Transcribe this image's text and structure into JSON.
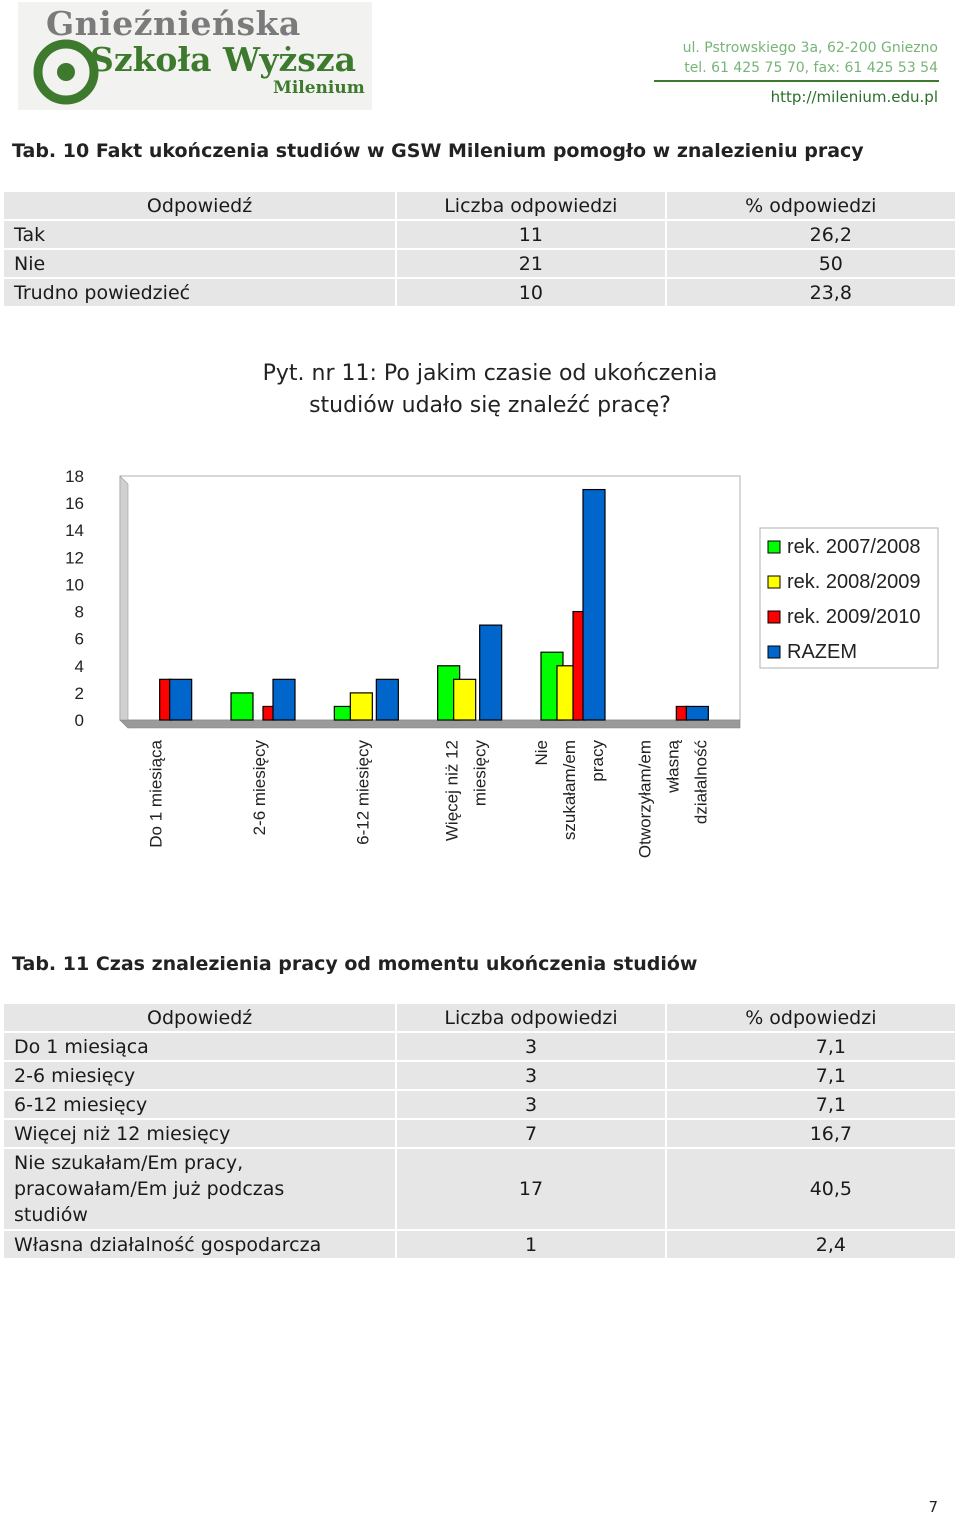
{
  "header": {
    "logo_line1": "Gnieźnieńska",
    "logo_line2": "Szkoła Wyższa",
    "logo_line3": "Milenium",
    "address": "ul. Pstrowskiego 3a, 62-200 Gniezno",
    "phone": "tel. 61 425 75 70, fax: 61 425 53 54",
    "url": "http://milenium.edu.pl"
  },
  "table10": {
    "caption": "Tab. 10 Fakt ukończenia studiów w GSW Milenium pomogło w znalezieniu pracy",
    "headers": [
      "Odpowiedź",
      "Liczba odpowiedzi",
      "% odpowiedzi"
    ],
    "rows": [
      {
        "answer": "Tak",
        "count": "11",
        "percent": "26,2"
      },
      {
        "answer": "Nie",
        "count": "21",
        "percent": "50"
      },
      {
        "answer": "Trudno powiedzieć",
        "count": "10",
        "percent": "23,8"
      }
    ]
  },
  "chart_title_line1": "Pyt. nr 11: Po jakim czasie od ukończenia",
  "chart_title_line2": "studiów udało się znaleźć pracę?",
  "chart_data": {
    "type": "bar",
    "title": "Pyt. nr 11: Po jakim czasie od ukończenia studiów udało się znaleźć pracę?",
    "categories": [
      [
        "Do 1 miesiąca"
      ],
      [
        "2-6 miesięcy"
      ],
      [
        "6-12 miesięcy"
      ],
      [
        "Więcej niż 12",
        "miesięcy"
      ],
      [
        "Nie",
        "szukałam/em",
        "pracy"
      ],
      [
        "Otworzyłam/em",
        "własną",
        "działalność"
      ]
    ],
    "series": [
      {
        "name": "rek. 2007/2008",
        "color": "#00ff00",
        "values": [
          0,
          2,
          1,
          4,
          5,
          0
        ]
      },
      {
        "name": "rek. 2008/2009",
        "color": "#ffff00",
        "values": [
          0,
          0,
          2,
          3,
          4,
          0
        ]
      },
      {
        "name": "rek. 2009/2010",
        "color": "#ff0000",
        "values": [
          3,
          1,
          0,
          0,
          8,
          1
        ]
      },
      {
        "name": "RAZEM",
        "color": "#0066cc",
        "values": [
          3,
          3,
          3,
          7,
          17,
          1
        ]
      }
    ],
    "yticks": [
      "0",
      "2",
      "4",
      "6",
      "8",
      "10",
      "12",
      "14",
      "16",
      "18"
    ],
    "ylim": [
      0,
      18
    ],
    "grid": false,
    "legend": "right"
  },
  "table11": {
    "caption": "Tab. 11 Czas znalezienia pracy od momentu ukończenia studiów",
    "headers": [
      "Odpowiedź",
      "Liczba odpowiedzi",
      "% odpowiedzi"
    ],
    "rows": [
      {
        "answer": "Do 1 miesiąca",
        "count": "3",
        "percent": "7,1"
      },
      {
        "answer": "2-6 miesięcy",
        "count": "3",
        "percent": "7,1"
      },
      {
        "answer": "6-12 miesięcy",
        "count": "3",
        "percent": "7,1"
      },
      {
        "answer": "Więcej niż 12 miesięcy",
        "count": "7",
        "percent": "16,7"
      },
      {
        "answer": "Nie szukałam/Em pracy, pracowałam/Em już podczas studiów",
        "count": "17",
        "percent": "40,5"
      },
      {
        "answer": "Własna działalność gospodarcza",
        "count": "1",
        "percent": "2,4"
      }
    ]
  },
  "page_number": "7"
}
